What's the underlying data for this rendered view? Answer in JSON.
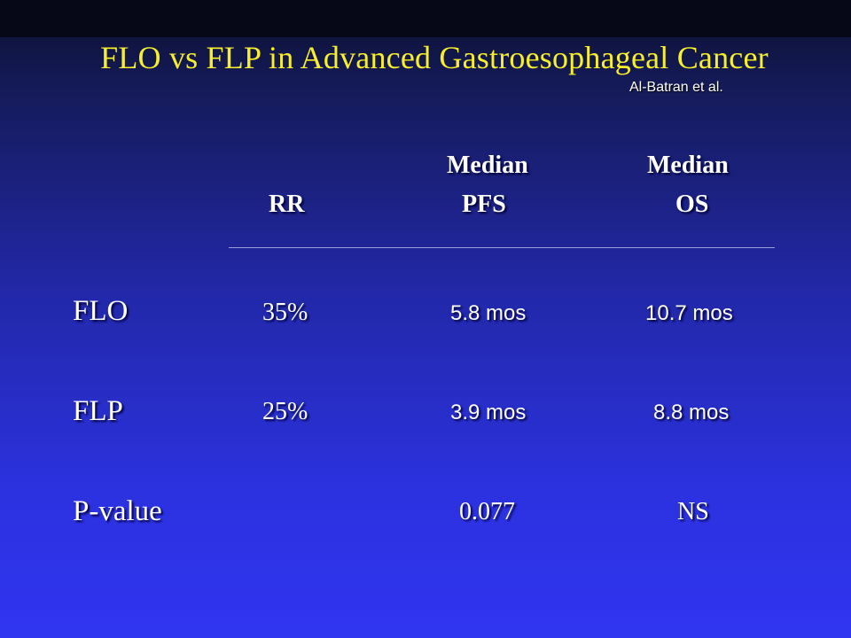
{
  "slide": {
    "title": "FLO vs FLP in Advanced Gastroesophageal Cancer",
    "citation": "Al-Batran et al."
  },
  "table": {
    "headers": {
      "rr": {
        "line1": "",
        "line2": "RR"
      },
      "pfs": {
        "line1": "Median",
        "line2": "PFS"
      },
      "os": {
        "line1": "Median",
        "line2": "OS"
      }
    },
    "rows": [
      {
        "label": "FLO",
        "rr": "35%",
        "pfs": "5.8 mos",
        "os": "10.7 mos"
      },
      {
        "label": "FLP",
        "rr": "25%",
        "pfs": "3.9 mos",
        "os": "8.8 mos"
      },
      {
        "label": "P-value",
        "rr": "",
        "pfs": "0.077",
        "os": "NS"
      }
    ]
  },
  "colors": {
    "title": "#f7ef2a",
    "text": "#ffffff",
    "background_top": "#0b0e2e",
    "background_bottom": "#3035f0"
  }
}
